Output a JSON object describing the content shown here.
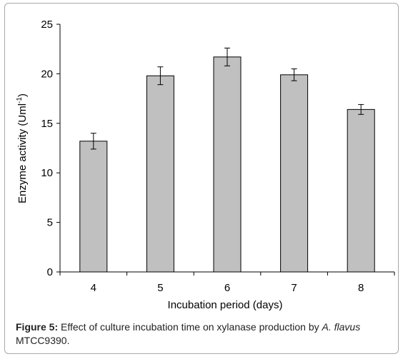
{
  "chart_data": {
    "type": "bar",
    "categories": [
      "4",
      "5",
      "6",
      "7",
      "8"
    ],
    "values": [
      13.2,
      19.8,
      21.7,
      19.9,
      16.4
    ],
    "errors": [
      0.8,
      0.9,
      0.9,
      0.6,
      0.5
    ],
    "xlabel": "Incubation period (days)",
    "ylabel_main": "Enzyme activity (Uml",
    "ylabel_sup": "-1",
    "ylabel_end": ")",
    "ylim": [
      0,
      25
    ],
    "yticks": [
      0,
      5,
      10,
      15,
      20,
      25
    ],
    "grid": false,
    "bar_color": "#c0c0c0",
    "bar_edge_color": "#000000"
  },
  "caption": {
    "label": "Figure 5:",
    "text": " Effect of culture incubation time on xylanase production by ",
    "species": "A. flavus",
    "strain": " MTCC9390."
  }
}
